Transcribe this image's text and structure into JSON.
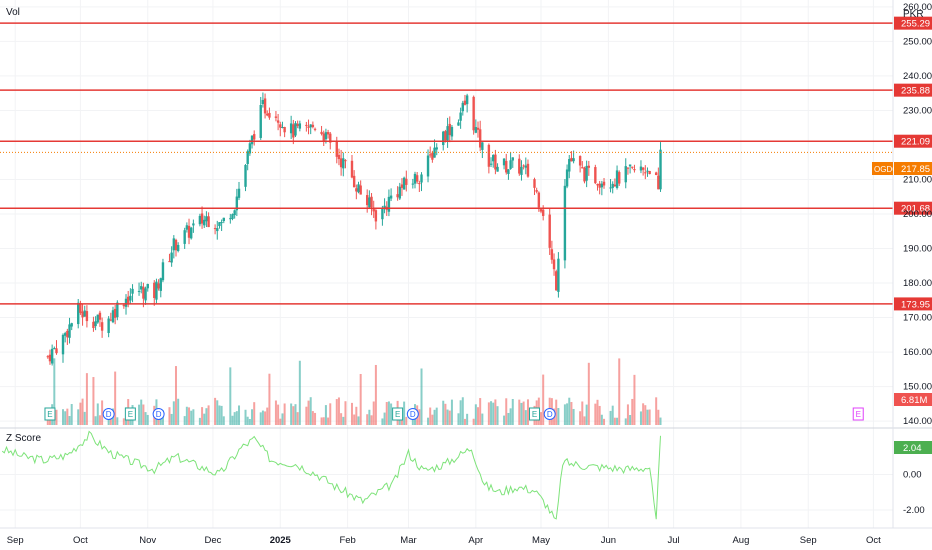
{
  "header": {
    "volume_label": "Vol",
    "currency": "PKR"
  },
  "indicator": {
    "label": "Z Score",
    "last_value": "2.04"
  },
  "colors": {
    "up": "#26a69a",
    "down": "#ef5350",
    "level": "#e53935",
    "zscore": "#7ee37a",
    "price_tag": "#f57c00"
  },
  "price_axis": {
    "ticks": [
      "260.00",
      "250.00",
      "240.00",
      "230.00",
      "210.00",
      "200.00",
      "190.00",
      "180.00",
      "170.00",
      "160.00",
      "150.00",
      "140.00"
    ]
  },
  "z_axis": {
    "ticks": [
      "0.00",
      "-2.00"
    ]
  },
  "time_axis": {
    "labels": [
      "Sep",
      "Oct",
      "Nov",
      "Dec",
      "2025",
      "Feb",
      "Mar",
      "Apr",
      "May",
      "Jun",
      "Jul",
      "Aug",
      "Sep",
      "Oct"
    ]
  },
  "levels": [
    {
      "value": 255.29,
      "label": "255.29"
    },
    {
      "value": 235.88,
      "label": "235.88"
    },
    {
      "value": 221.09,
      "label": "221.09"
    },
    {
      "value": 201.68,
      "label": "201.68"
    },
    {
      "value": 173.95,
      "label": "173.95"
    }
  ],
  "last_price": {
    "symbol": "OGDC",
    "value": 217.85,
    "label": "217.85"
  },
  "last_volume": {
    "label": "6.81M"
  },
  "event_markers": [
    {
      "date": "2024-09-17",
      "kind": "E"
    },
    {
      "date": "2024-10-14",
      "kind": "D"
    },
    {
      "date": "2024-10-24",
      "kind": "E"
    },
    {
      "date": "2024-11-06",
      "kind": "D"
    },
    {
      "date": "2025-02-24",
      "kind": "E"
    },
    {
      "date": "2025-03-03",
      "kind": "D"
    },
    {
      "date": "2025-04-28",
      "kind": "E"
    },
    {
      "date": "2025-05-05",
      "kind": "D"
    },
    {
      "date": "2025-09-24",
      "kind": "E"
    }
  ],
  "chart_data": {
    "type": "candlestick",
    "symbol": "OGDC",
    "currency": "PKR",
    "y_range": [
      138,
      262
    ],
    "x_range": [
      "2024-08-25",
      "2025-10-10"
    ],
    "price_path": [
      [
        "2024-09-15",
        158
      ],
      [
        "2024-09-22",
        163
      ],
      [
        "2024-09-30",
        172
      ],
      [
        "2024-10-05",
        170
      ],
      [
        "2024-10-12",
        168
      ],
      [
        "2024-10-20",
        175
      ],
      [
        "2024-10-28",
        178
      ],
      [
        "2024-11-04",
        177
      ],
      [
        "2024-11-08",
        184
      ],
      [
        "2024-11-13",
        191
      ],
      [
        "2024-11-20",
        195
      ],
      [
        "2024-11-28",
        199
      ],
      [
        "2024-12-05",
        197
      ],
      [
        "2024-12-11",
        203
      ],
      [
        "2024-12-15",
        212
      ],
      [
        "2024-12-20",
        224
      ],
      [
        "2024-12-24",
        231
      ],
      [
        "2024-12-29",
        230
      ],
      [
        "2025-01-05",
        224
      ],
      [
        "2025-01-12",
        224
      ],
      [
        "2025-01-18",
        226
      ],
      [
        "2025-01-25",
        219
      ],
      [
        "2025-02-01",
        213
      ],
      [
        "2025-02-08",
        205
      ],
      [
        "2025-02-15",
        199
      ],
      [
        "2025-02-22",
        206
      ],
      [
        "2025-03-01",
        209
      ],
      [
        "2025-03-08",
        212
      ],
      [
        "2025-03-15",
        222
      ],
      [
        "2025-03-22",
        226
      ],
      [
        "2025-03-28",
        233
      ],
      [
        "2025-04-02",
        222
      ],
      [
        "2025-04-06",
        216
      ],
      [
        "2025-04-12",
        214
      ],
      [
        "2025-04-20",
        214
      ],
      [
        "2025-04-26",
        211
      ],
      [
        "2025-05-02",
        201
      ],
      [
        "2025-05-06",
        186
      ],
      [
        "2025-05-08",
        180
      ],
      [
        "2025-05-11",
        207
      ],
      [
        "2025-05-14",
        216
      ],
      [
        "2025-05-20",
        212
      ],
      [
        "2025-05-28",
        210
      ],
      [
        "2025-06-04",
        210
      ],
      [
        "2025-06-11",
        212
      ],
      [
        "2025-06-18",
        213
      ],
      [
        "2025-06-22",
        214
      ],
      [
        "2025-06-24",
        205
      ],
      [
        "2025-06-25",
        217.85
      ]
    ],
    "volume": {
      "last": "6.81M"
    },
    "zscore_path": [
      [
        "2024-08-26",
        1.4
      ],
      [
        "2024-09-05",
        1.0
      ],
      [
        "2024-09-15",
        0.8
      ],
      [
        "2024-09-25",
        1.1
      ],
      [
        "2024-10-05",
        2.2
      ],
      [
        "2024-10-15",
        1.2
      ],
      [
        "2024-10-25",
        0.7
      ],
      [
        "2024-11-04",
        0.3
      ],
      [
        "2024-11-14",
        1.0
      ],
      [
        "2024-11-24",
        0.5
      ],
      [
        "2024-12-04",
        0.0
      ],
      [
        "2024-12-14",
        1.5
      ],
      [
        "2024-12-20",
        2.0
      ],
      [
        "2024-12-28",
        0.8
      ],
      [
        "2025-01-08",
        0.6
      ],
      [
        "2025-01-18",
        0.0
      ],
      [
        "2025-01-28",
        -0.8
      ],
      [
        "2025-02-08",
        -1.5
      ],
      [
        "2025-02-15",
        -1.0
      ],
      [
        "2025-02-22",
        -0.5
      ],
      [
        "2025-03-01",
        1.2
      ],
      [
        "2025-03-08",
        0.2
      ],
      [
        "2025-03-18",
        0.6
      ],
      [
        "2025-03-30",
        1.5
      ],
      [
        "2025-04-05",
        -0.6
      ],
      [
        "2025-04-12",
        -1.0
      ],
      [
        "2025-04-20",
        -0.7
      ],
      [
        "2025-04-28",
        -0.9
      ],
      [
        "2025-05-04",
        -1.8
      ],
      [
        "2025-05-08",
        -2.7
      ],
      [
        "2025-05-11",
        0.7
      ],
      [
        "2025-05-20",
        0.5
      ],
      [
        "2025-05-30",
        0.4
      ],
      [
        "2025-06-10",
        0.3
      ],
      [
        "2025-06-20",
        0.4
      ],
      [
        "2025-06-23",
        -2.7
      ],
      [
        "2025-06-25",
        2.04
      ]
    ],
    "z_range": [
      -2.9,
      2.5
    ]
  }
}
